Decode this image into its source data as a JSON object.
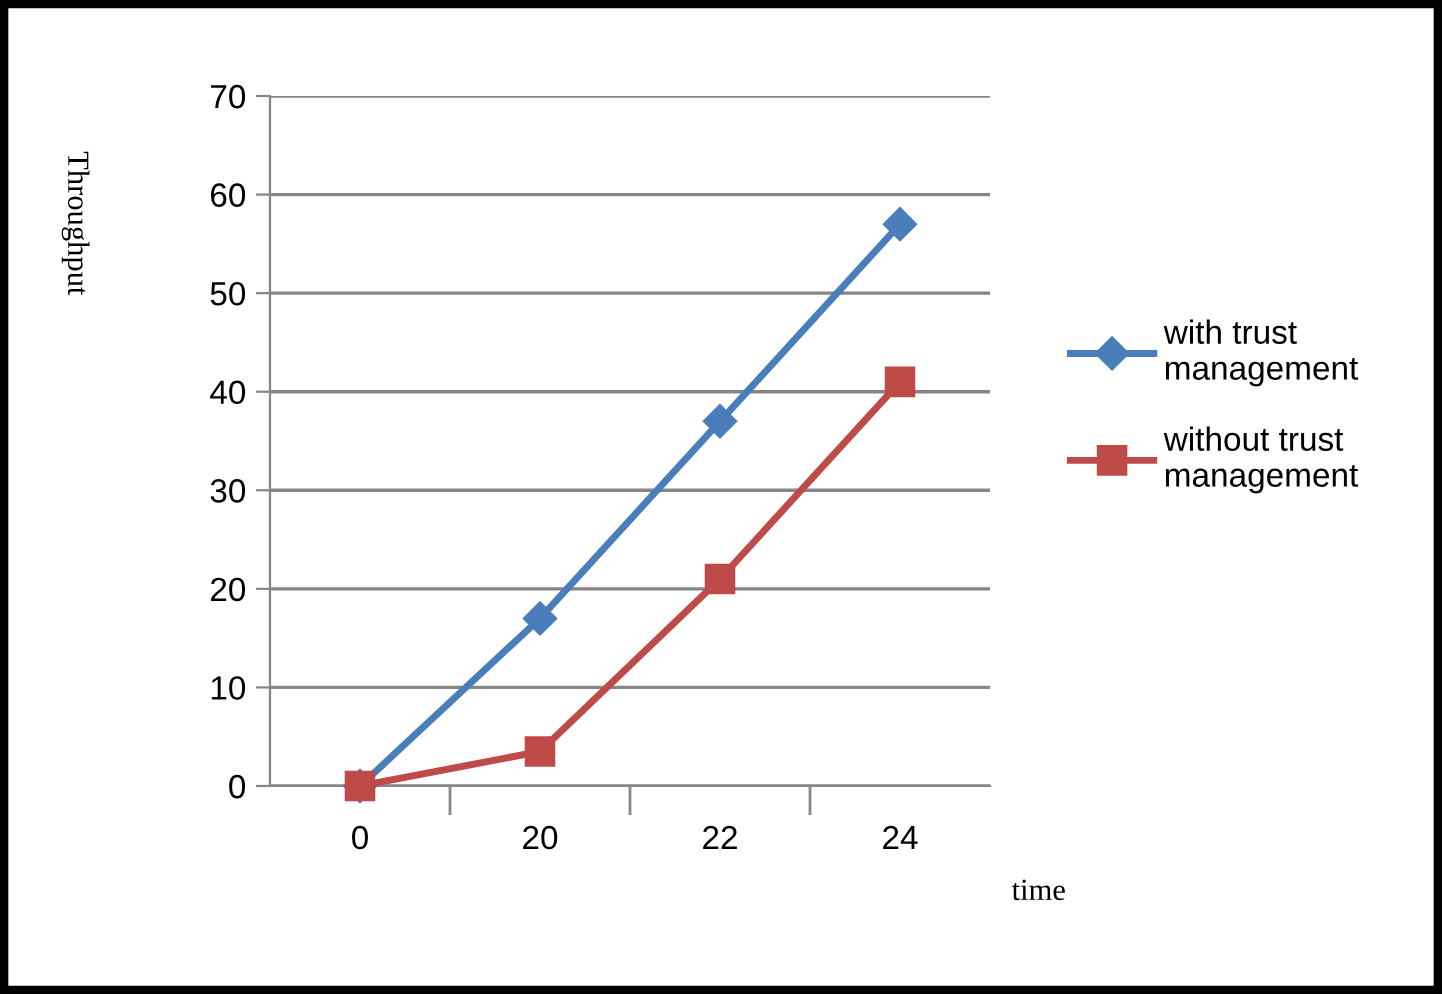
{
  "chart_data": {
    "type": "line",
    "xlabel": "time",
    "ylabel": "Throughput",
    "categories": [
      "0",
      "20",
      "22",
      "24"
    ],
    "series": [
      {
        "name": "with trust management",
        "color": "#4a7ebb",
        "marker": "diamond",
        "values": [
          0,
          17,
          37,
          57
        ]
      },
      {
        "name": "without trust management",
        "color": "#be4b48",
        "marker": "square",
        "values": [
          0,
          3.5,
          21,
          41
        ]
      }
    ],
    "ylim": [
      0,
      70
    ],
    "yticks": [
      0,
      10,
      20,
      30,
      40,
      50,
      60,
      70
    ],
    "grid": "y",
    "legend": "right",
    "line_style": "solid"
  }
}
